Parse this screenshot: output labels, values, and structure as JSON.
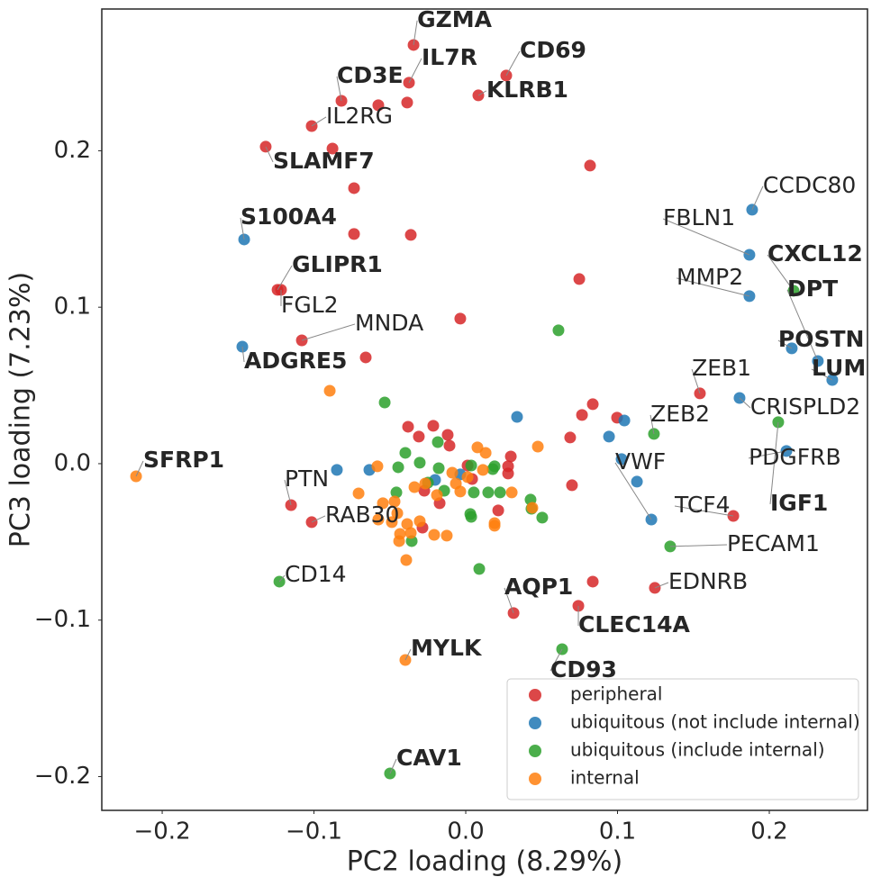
{
  "chart_data": {
    "type": "scatter",
    "xlabel": "PC2 loading (8.29%)",
    "ylabel": "PC3 loading (7.23%)",
    "xlim": [
      -0.2398,
      0.2647
    ],
    "ylim": [
      -0.2216,
      0.2906
    ],
    "xticks": [
      {
        "value": -0.2,
        "label": "−0.2"
      },
      {
        "value": -0.1,
        "label": "−0.1"
      },
      {
        "value": 0,
        "label": "0.0"
      },
      {
        "value": 0.1,
        "label": "0.1"
      },
      {
        "value": 0.2,
        "label": "0.2"
      }
    ],
    "yticks": [
      {
        "value": -0.2,
        "label": "−0.2"
      },
      {
        "value": -0.1,
        "label": "−0.1"
      },
      {
        "value": 0,
        "label": "0.0"
      },
      {
        "value": 0.1,
        "label": "0.1"
      },
      {
        "value": 0.2,
        "label": "0.2"
      }
    ],
    "grid": false,
    "legend_position": "lower right",
    "series": [
      {
        "name": "peripheral",
        "color": "#d62728",
        "x": [
          -0.0344,
          -0.0374,
          0.0267,
          0.0083,
          -0.0819,
          -0.0576,
          -0.0386,
          -0.1015,
          -0.0878,
          -0.1318,
          0.0819,
          -0.0736,
          -0.0736,
          -0.0362,
          0.0748,
          -0.124,
          -0.1217,
          -0.0036,
          -0.108,
          -0.0659,
          0.1543,
          0.0837,
          0.0766,
          0.0997,
          0.0688,
          -0.038,
          -0.0214,
          -0.0309,
          -0.0119,
          -0.0107,
          0.0012,
          0.0297,
          0.0279,
          0.0279,
          0.07,
          0.0042,
          -0.0172,
          0.0214,
          -0.0273,
          -0.1151,
          -0.1015,
          -0.0285,
          0.1763,
          0.0837,
          0.1246,
          0.0742,
          0.0315
        ],
        "values": [
          0.2676,
          0.2435,
          0.2481,
          0.2354,
          0.2319,
          0.2291,
          0.2308,
          0.2158,
          0.2014,
          0.2026,
          0.1905,
          0.1761,
          0.1468,
          0.1462,
          0.118,
          0.1111,
          0.1111,
          0.0927,
          0.0788,
          0.0679,
          0.0449,
          0.038,
          0.0311,
          0.0294,
          0.0167,
          0.0236,
          0.0242,
          0.0173,
          0.0184,
          0.0115,
          -0.0012,
          0.0046,
          -0.0063,
          -0.0017,
          -0.0138,
          -0.0098,
          -0.0253,
          -0.0299,
          -0.0173,
          -0.0265,
          -0.0374,
          -0.0409,
          -0.0334,
          -0.0754,
          -0.0794,
          -0.0909,
          -0.0955
        ]
      },
      {
        "name": "ubiquitous (not include internal)",
        "color": "#1f77b4",
        "x": [
          0.1887,
          0.1869,
          0.1869,
          -0.146,
          -0.1472,
          0.2148,
          0.232,
          0.2415,
          0.1804,
          0.0338,
          0.1045,
          0.0944,
          0.2113,
          0.1027,
          0.1128,
          0.1223,
          -0.0849,
          -0.0635,
          -0.0036,
          -0.0202
        ],
        "values": [
          0.1623,
          0.1335,
          0.1071,
          0.1433,
          0.0748,
          0.0737,
          0.0656,
          0.0535,
          0.042,
          0.0299,
          0.0276,
          0.0173,
          0.0081,
          0.0029,
          -0.0115,
          -0.0357,
          -0.004,
          -0.004,
          -0.0069,
          -0.0104
        ]
      },
      {
        "name": "ubiquitous (include internal)",
        "color": "#2ca02c",
        "x": [
          0.216,
          0.0611,
          -0.0534,
          0.2059,
          0.124,
          -0.0398,
          -0.0303,
          -0.0184,
          -0.0178,
          -0.0457,
          -0.0445,
          -0.0142,
          0.0036,
          0.0053,
          0.0148,
          0.0178,
          0.019,
          0.0226,
          0.0036,
          0.003,
          0.0427,
          0.0433,
          0.0504,
          0.1347,
          -0.0356,
          0.0089,
          -0.1228,
          0.0635,
          -0.0499,
          -0.0249
        ],
        "values": [
          0.1105,
          0.0852,
          0.0391,
          0.0265,
          0.019,
          0.0069,
          0.0006,
          0.0138,
          -0.0029,
          -0.0184,
          -0.0023,
          -0.0173,
          -0.0012,
          -0.0184,
          -0.0184,
          -0.0035,
          -0.0017,
          -0.0184,
          -0.034,
          -0.0322,
          -0.023,
          -0.0288,
          -0.0345,
          -0.0529,
          -0.0495,
          -0.0673,
          -0.0754,
          -0.1186,
          -0.198,
          -0.0121
        ]
      },
      {
        "name": "internal",
        "color": "#ff7f0e",
        "x": [
          -0.2172,
          -0.0896,
          0.0475,
          0.0077,
          0.0131,
          -0.0582,
          -0.0706,
          -0.0546,
          -0.0469,
          -0.0576,
          -0.0451,
          -0.0386,
          -0.0362,
          -0.0433,
          -0.0439,
          -0.0392,
          -0.0338,
          -0.0267,
          -0.019,
          -0.0125,
          -0.0208,
          -0.0303,
          -0.0065,
          -0.0036,
          0.0012,
          0.0113,
          0.019,
          0.0303,
          0.0439,
          0.019,
          -0.0398,
          -0.0487,
          -0.0089
        ],
        "values": [
          -0.0081,
          0.0466,
          0.0109,
          0.0104,
          0.0069,
          -0.0017,
          -0.019,
          -0.0253,
          -0.0242,
          -0.0357,
          -0.0317,
          -0.0386,
          -0.0443,
          -0.0449,
          -0.0495,
          -0.0616,
          -0.015,
          -0.0127,
          -0.0201,
          -0.046,
          -0.0455,
          -0.0368,
          -0.0127,
          -0.0178,
          -0.0086,
          -0.004,
          -0.038,
          -0.0184,
          -0.0282,
          -0.0397,
          -0.1255,
          -0.0374,
          -0.0058
        ]
      }
    ],
    "annotations": [
      {
        "text": "GZMA",
        "bold": true,
        "x": -0.0344,
        "y": 0.2676,
        "xtext": -0.032,
        "ytext": 0.2832
      },
      {
        "text": "IL7R",
        "bold": true,
        "x": -0.0374,
        "y": 0.2435,
        "xtext": -0.0291,
        "ytext": 0.259
      },
      {
        "text": "CD69",
        "bold": true,
        "x": 0.0267,
        "y": 0.2481,
        "xtext": 0.0356,
        "ytext": 0.2636
      },
      {
        "text": "KLRB1",
        "bold": true,
        "x": 0.0083,
        "y": 0.2354,
        "xtext": 0.0136,
        "ytext": 0.2383
      },
      {
        "text": "CD3E",
        "bold": true,
        "x": -0.0819,
        "y": 0.2319,
        "xtext": -0.0849,
        "ytext": 0.2475
      },
      {
        "text": "IL2RG",
        "bold": false,
        "x": -0.1015,
        "y": 0.2158,
        "xtext": -0.092,
        "ytext": 0.2216
      },
      {
        "text": "SLAMF7",
        "bold": true,
        "x": -0.1318,
        "y": 0.2026,
        "xtext": -0.127,
        "ytext": 0.1928
      },
      {
        "text": "S100A4",
        "bold": true,
        "x": -0.146,
        "y": 0.1433,
        "xtext": -0.1484,
        "ytext": 0.1571
      },
      {
        "text": "GLIPR1",
        "bold": true,
        "x": -0.124,
        "y": 0.1111,
        "xtext": -0.1145,
        "ytext": 0.1266
      },
      {
        "text": "FGL2",
        "bold": false,
        "x": -0.1217,
        "y": 0.1111,
        "xtext": -0.1217,
        "ytext": 0.1007
      },
      {
        "text": "MNDA",
        "bold": false,
        "x": -0.108,
        "y": 0.0788,
        "xtext": -0.073,
        "ytext": 0.0892
      },
      {
        "text": "ADGRE5",
        "bold": true,
        "x": -0.1472,
        "y": 0.0748,
        "xtext": -0.146,
        "ytext": 0.065
      },
      {
        "text": "CCDC80",
        "bold": false,
        "x": 0.1887,
        "y": 0.1623,
        "xtext": 0.1958,
        "ytext": 0.1773
      },
      {
        "text": "FBLN1",
        "bold": false,
        "x": 0.1869,
        "y": 0.1335,
        "xtext": 0.13,
        "ytext": 0.1565
      },
      {
        "text": "CXCL12",
        "bold": true,
        "x": 0.216,
        "y": 0.1105,
        "xtext": 0.1988,
        "ytext": 0.1335
      },
      {
        "text": "MMP2",
        "bold": false,
        "x": 0.1869,
        "y": 0.1071,
        "xtext": 0.1389,
        "ytext": 0.1186
      },
      {
        "text": "DPT",
        "bold": true,
        "x": 0.232,
        "y": 0.0656,
        "xtext": 0.2119,
        "ytext": 0.1111
      },
      {
        "text": "POSTN",
        "bold": true,
        "x": 0.2148,
        "y": 0.0737,
        "xtext": 0.2059,
        "ytext": 0.0788
      },
      {
        "text": "LUM",
        "bold": true,
        "x": 0.2415,
        "y": 0.0535,
        "xtext": 0.2279,
        "ytext": 0.0604
      },
      {
        "text": "ZEB1",
        "bold": false,
        "x": 0.1543,
        "y": 0.0449,
        "xtext": 0.149,
        "ytext": 0.0604
      },
      {
        "text": "CRISPLD2",
        "bold": false,
        "x": 0.1804,
        "y": 0.042,
        "xtext": 0.1875,
        "ytext": 0.0357
      },
      {
        "text": "ZEB2",
        "bold": false,
        "x": 0.124,
        "y": 0.019,
        "xtext": 0.1217,
        "ytext": 0.0311
      },
      {
        "text": "PDGFRB",
        "bold": false,
        "x": 0.2113,
        "y": 0.0081,
        "xtext": 0.1864,
        "ytext": 0.0035
      },
      {
        "text": "IGF1",
        "bold": true,
        "x": 0.2059,
        "y": 0.0265,
        "xtext": 0.2006,
        "ytext": -0.0259
      },
      {
        "text": "VWF",
        "bold": false,
        "x": 0.1223,
        "y": -0.0357,
        "xtext": 0.0985,
        "ytext": 0.0006
      },
      {
        "text": "TCF4",
        "bold": false,
        "x": 0.1763,
        "y": -0.0334,
        "xtext": 0.1377,
        "ytext": -0.0271
      },
      {
        "text": "PECAM1",
        "bold": false,
        "x": 0.1347,
        "y": -0.0529,
        "xtext": 0.1721,
        "ytext": -0.0518
      },
      {
        "text": "EDNRB",
        "bold": false,
        "x": 0.1246,
        "y": -0.0794,
        "xtext": 0.1335,
        "ytext": -0.076
      },
      {
        "text": "CLEC14A",
        "bold": true,
        "x": 0.0742,
        "y": -0.0909,
        "xtext": 0.0742,
        "ytext": -0.1036
      },
      {
        "text": "AQP1",
        "bold": true,
        "x": 0.0315,
        "y": -0.0955,
        "xtext": 0.0255,
        "ytext": -0.0794
      },
      {
        "text": "CD93",
        "bold": true,
        "x": 0.0635,
        "y": -0.1186,
        "xtext": 0.0558,
        "ytext": -0.1324
      },
      {
        "text": "CAV1",
        "bold": true,
        "x": -0.0499,
        "y": -0.198,
        "xtext": -0.0457,
        "ytext": -0.1888
      },
      {
        "text": "MYLK",
        "bold": true,
        "x": -0.0398,
        "y": -0.1255,
        "xtext": -0.0362,
        "ytext": -0.1186
      },
      {
        "text": "SFRP1",
        "bold": true,
        "x": -0.2172,
        "y": -0.0081,
        "xtext": -0.2125,
        "ytext": 0.0017
      },
      {
        "text": "PTN",
        "bold": false,
        "x": -0.1151,
        "y": -0.0265,
        "xtext": -0.1193,
        "ytext": -0.0104
      },
      {
        "text": "RAB30",
        "bold": false,
        "x": -0.1015,
        "y": -0.0374,
        "xtext": -0.0926,
        "ytext": -0.0334
      },
      {
        "text": "CD14",
        "bold": false,
        "x": -0.1228,
        "y": -0.0754,
        "xtext": -0.1193,
        "ytext": -0.0714
      }
    ]
  }
}
